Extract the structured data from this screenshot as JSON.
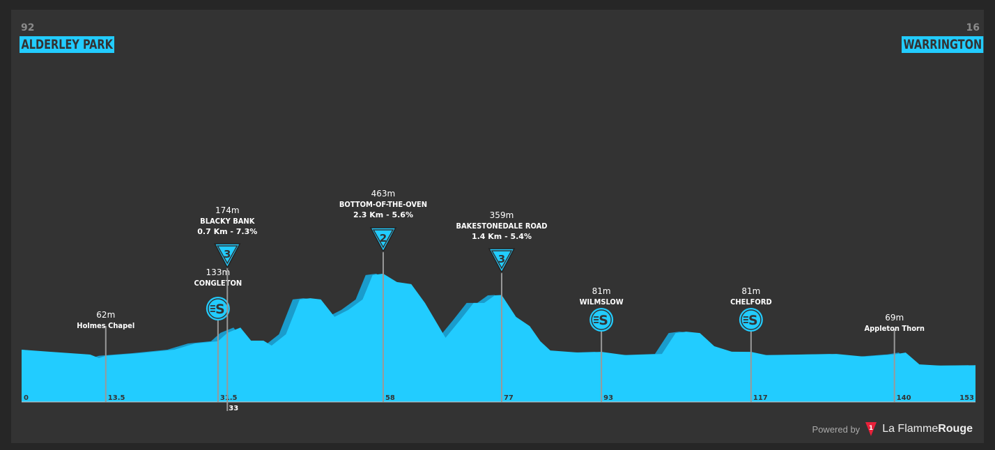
{
  "start": {
    "elevation": "92",
    "name": "ALDERLEY PARK"
  },
  "finish": {
    "elevation": "16",
    "name": "WARRINGTON"
  },
  "footer": {
    "powered_by": "Powered by",
    "brand_light": "La Flamme",
    "brand_bold": "Rouge",
    "logo_number": "1"
  },
  "colors": {
    "profile": "#22ccff",
    "profile_shadow": "#1a9ccc",
    "background": "#333333",
    "text_dark": "#333333"
  },
  "chart_data": {
    "type": "area",
    "xlabel": "",
    "ylabel": "",
    "xlim": [
      0,
      153
    ],
    "x_tick_labels": [
      "0",
      "13.5",
      "31.5",
      "33",
      "58",
      "77",
      "93",
      "117",
      "140",
      "153"
    ],
    "profile": [
      [
        0,
        92
      ],
      [
        4.4,
        82
      ],
      [
        11,
        68
      ],
      [
        12.4,
        51
      ],
      [
        13.5,
        62
      ],
      [
        18.9,
        75
      ],
      [
        24.5,
        92
      ],
      [
        27.8,
        122
      ],
      [
        31.5,
        133
      ],
      [
        33,
        174
      ],
      [
        35.1,
        200
      ],
      [
        36.8,
        136
      ],
      [
        38.8,
        136
      ],
      [
        40.1,
        112
      ],
      [
        42.4,
        167
      ],
      [
        44.6,
        337
      ],
      [
        46.3,
        343
      ],
      [
        48,
        337
      ],
      [
        50.2,
        252
      ],
      [
        52.4,
        286
      ],
      [
        54.7,
        337
      ],
      [
        56.3,
        456
      ],
      [
        58,
        463
      ],
      [
        60.2,
        422
      ],
      [
        62.5,
        412
      ],
      [
        64.7,
        320
      ],
      [
        68,
        150
      ],
      [
        70.3,
        235
      ],
      [
        72.5,
        320
      ],
      [
        74.2,
        320
      ],
      [
        75.9,
        357
      ],
      [
        77,
        359
      ],
      [
        79.3,
        252
      ],
      [
        81.5,
        207
      ],
      [
        83.2,
        133
      ],
      [
        84.8,
        88
      ],
      [
        89.3,
        78
      ],
      [
        93,
        81
      ],
      [
        97,
        65
      ],
      [
        102.7,
        71
      ],
      [
        104.9,
        173
      ],
      [
        106.6,
        180
      ],
      [
        108.8,
        173
      ],
      [
        111.1,
        109
      ],
      [
        113.9,
        82
      ],
      [
        117,
        81
      ],
      [
        119.5,
        65
      ],
      [
        130.7,
        71
      ],
      [
        135.2,
        58
      ],
      [
        140,
        69
      ],
      [
        141.8,
        78
      ],
      [
        144,
        20
      ],
      [
        147.4,
        14
      ],
      [
        153,
        16
      ]
    ],
    "markers": [
      {
        "km": "13.5",
        "x": 13.5,
        "elevation": "62m",
        "name": "Holmes Chapel",
        "detail": "",
        "icon": "none"
      },
      {
        "km": "31.5",
        "x": 31.5,
        "elevation": "133m",
        "name": "CONGLETON",
        "detail": "",
        "icon": "sprint"
      },
      {
        "km": "33",
        "x": 33,
        "elevation": "174m",
        "name": "BLACKY BANK",
        "detail": "0.7 Km - 7.3%",
        "icon": "kom",
        "category": "3"
      },
      {
        "km": "58",
        "x": 58,
        "elevation": "463m",
        "name": "BOTTOM-OF-THE-OVEN",
        "detail": "2.3 Km - 5.6%",
        "icon": "kom",
        "category": "2"
      },
      {
        "km": "77",
        "x": 77,
        "elevation": "359m",
        "name": "BAKESTONEDALE ROAD",
        "detail": "1.4 Km - 5.4%",
        "icon": "kom",
        "category": "3"
      },
      {
        "km": "93",
        "x": 93,
        "elevation": "81m",
        "name": "WILMSLOW",
        "detail": "",
        "icon": "sprint"
      },
      {
        "km": "117",
        "x": 117,
        "elevation": "81m",
        "name": "CHELFORD",
        "detail": "",
        "icon": "sprint"
      },
      {
        "km": "140",
        "x": 140,
        "elevation": "69m",
        "name": "Appleton Thorn",
        "detail": "",
        "icon": "none"
      }
    ]
  }
}
